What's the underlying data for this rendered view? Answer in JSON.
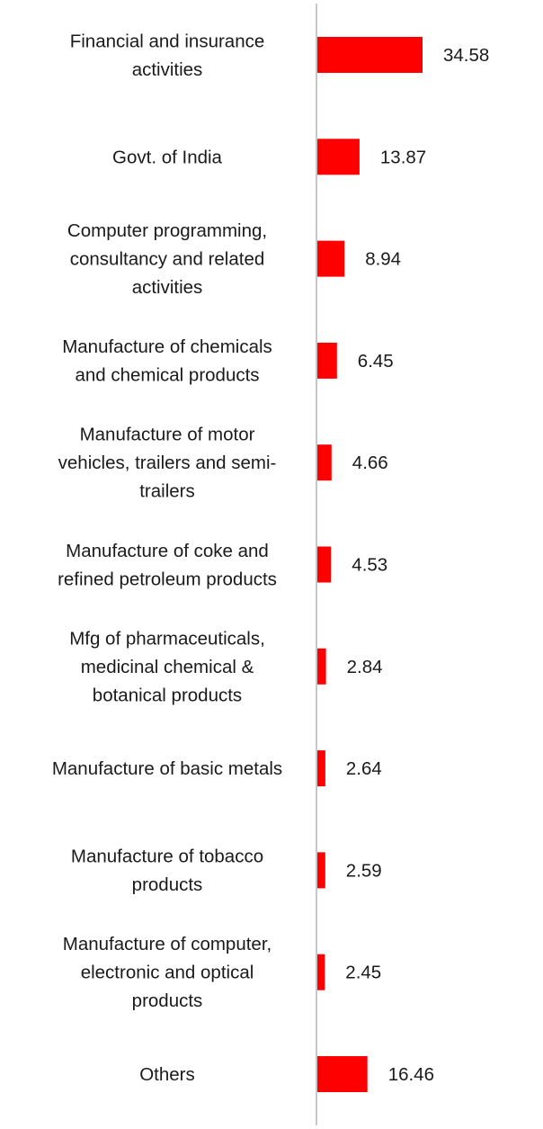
{
  "chart_data": {
    "type": "bar",
    "orientation": "horizontal",
    "categories": [
      [
        "Financial and insurance",
        "activities"
      ],
      [
        "Govt. of India"
      ],
      [
        "Computer programming,",
        "consultancy and related",
        "activities"
      ],
      [
        "Manufacture of chemicals",
        "and chemical products"
      ],
      [
        "Manufacture of motor",
        "vehicles, trailers and semi-",
        "trailers"
      ],
      [
        "Manufacture of coke and",
        "refined petroleum products"
      ],
      [
        "Mfg of pharmaceuticals,",
        "medicinal chemical &",
        "botanical products"
      ],
      [
        "Manufacture of basic metals"
      ],
      [
        "Manufacture of tobacco",
        "products"
      ],
      [
        "Manufacture of computer,",
        "electronic and optical",
        "products"
      ],
      [
        "Others"
      ]
    ],
    "values": [
      34.58,
      13.87,
      8.94,
      6.45,
      4.66,
      4.53,
      2.84,
      2.64,
      2.59,
      2.45,
      16.46
    ],
    "value_labels": [
      "34.58",
      "13.87",
      "8.94",
      "6.45",
      "4.66",
      "4.53",
      "2.84",
      "2.64",
      "2.59",
      "2.45",
      "16.46"
    ],
    "title": "",
    "xlabel": "",
    "ylabel": "",
    "xlim": [
      0,
      35
    ],
    "grid": false,
    "legend": "none",
    "bar_color": "#ff0000",
    "axis_color": "#c8c8c8"
  }
}
